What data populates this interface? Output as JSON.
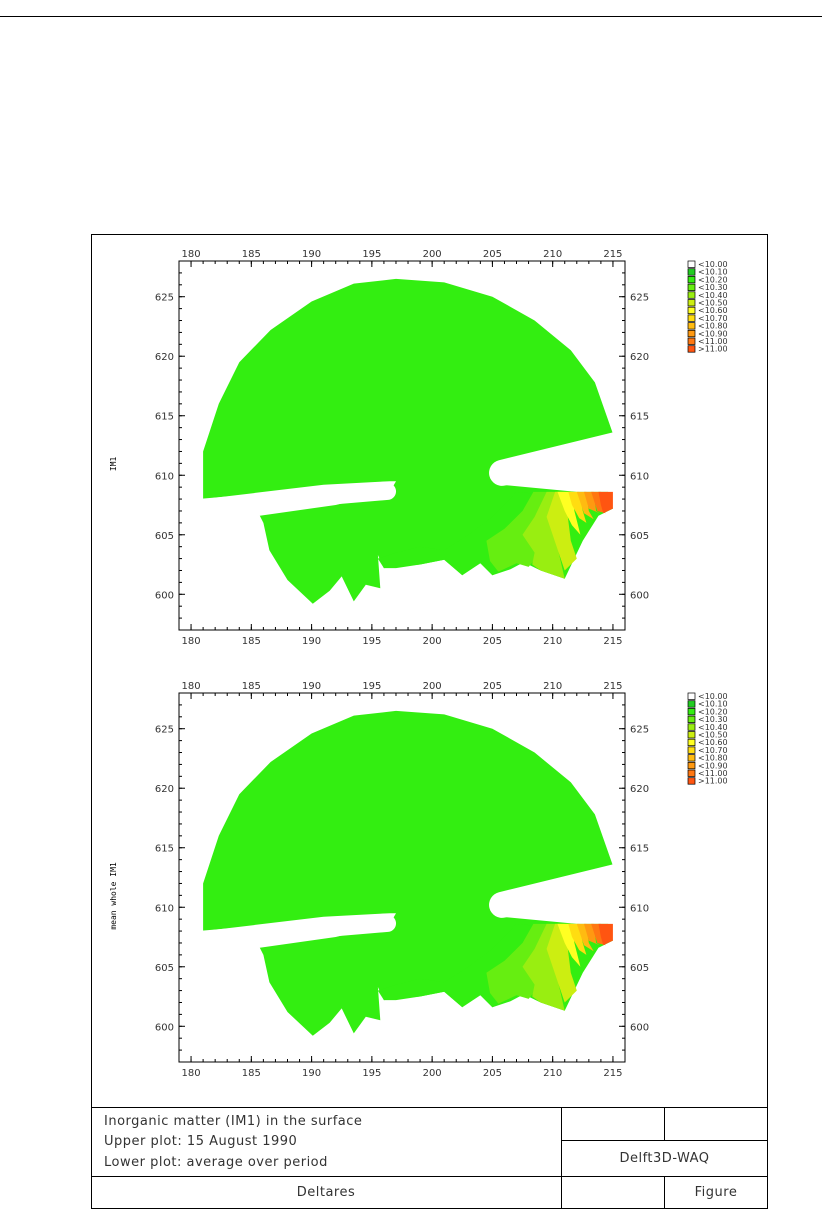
{
  "chart_data": [
    {
      "type": "heatmap",
      "panel": "upper",
      "ylabel": "IM1",
      "xlim": [
        179,
        216
      ],
      "ylim": [
        597,
        628
      ],
      "x_ticks": [
        "180",
        "185",
        "190",
        "195",
        "200",
        "205",
        "210",
        "215"
      ],
      "y_ticks": [
        "600",
        "605",
        "610",
        "615",
        "620",
        "625"
      ],
      "legend": [
        "<10.00",
        "<10.10",
        "<10.20",
        "<10.30",
        "<10.40",
        "<10.50",
        "<10.60",
        "<10.70",
        "<10.80",
        "<10.90",
        "<11.00",
        ">11.00"
      ],
      "legend_colors": [
        "#ffffff",
        "#22cc22",
        "#33ee11",
        "#66ee11",
        "#99ee11",
        "#ccee11",
        "#ffff22",
        "#ffdd11",
        "#ffbb11",
        "#ff9911",
        "#ff7711",
        "#ff5511"
      ],
      "legend_placement": "top-right",
      "dominant_class": "<10.20",
      "max_class": ">11.00"
    },
    {
      "type": "heatmap",
      "panel": "lower",
      "ylabel": "mean whole IM1",
      "xlim": [
        179,
        216
      ],
      "ylim": [
        597,
        628
      ],
      "x_ticks": [
        "180",
        "185",
        "190",
        "195",
        "200",
        "205",
        "210",
        "215"
      ],
      "y_ticks": [
        "600",
        "605",
        "610",
        "615",
        "620",
        "625"
      ],
      "legend": [
        "<10.00",
        "<10.10",
        "<10.20",
        "<10.30",
        "<10.40",
        "<10.50",
        "<10.60",
        "<10.70",
        "<10.80",
        "<10.90",
        "<11.00",
        ">11.00"
      ],
      "legend_colors": [
        "#ffffff",
        "#22cc22",
        "#33ee11",
        "#66ee11",
        "#99ee11",
        "#ccee11",
        "#ffff22",
        "#ffdd11",
        "#ffbb11",
        "#ff9911",
        "#ff7711",
        "#ff5511"
      ],
      "legend_placement": "top-right",
      "dominant_class": "<10.20",
      "max_class": ">11.00"
    }
  ],
  "caption": {
    "line1": "Inorganic matter (IM1) in the surface",
    "line2": "Upper plot: 15 August 1990",
    "line3": "Lower plot: average over period",
    "program": "Delft3D-WAQ",
    "organisation": "Deltares",
    "figure_label": "Figure"
  }
}
